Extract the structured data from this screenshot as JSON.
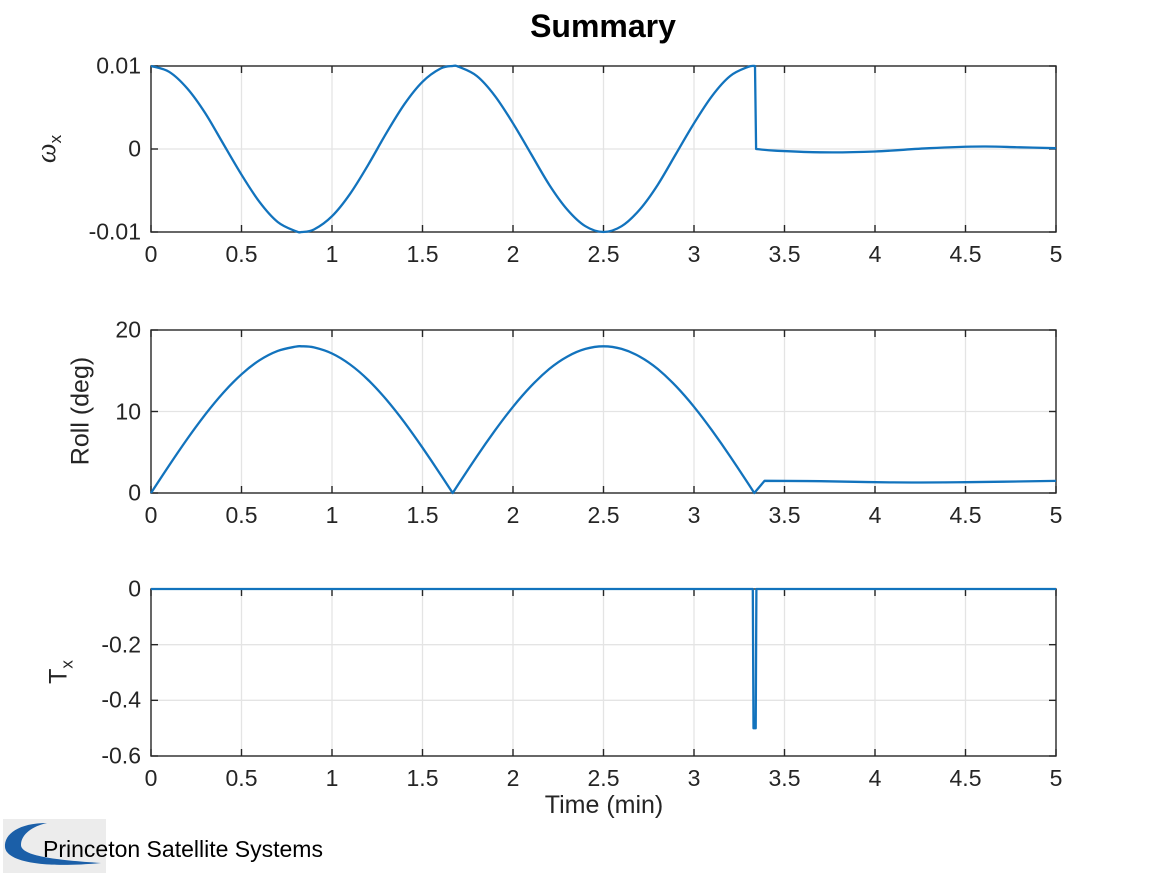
{
  "title": "Summary",
  "xlabel": "Time (min)",
  "branding": {
    "logo_text": "Princeton Satellite Systems"
  },
  "colors": {
    "line": "#1273bd",
    "axis": "#262626",
    "grid": "#e4e4e4",
    "logo_blue": "#1b5fa8",
    "logo_bg": "#ececec",
    "background": "#ffffff"
  },
  "chart_data": [
    {
      "type": "line",
      "name": "angular-rate",
      "ylabel": {
        "main": "ω",
        "sub": "x"
      },
      "xlim": [
        0,
        5
      ],
      "ylim": [
        -0.01,
        0.01
      ],
      "xtick_values": [
        0,
        0.5,
        1,
        1.5,
        2,
        2.5,
        3,
        3.5,
        4,
        4.5,
        5
      ],
      "xtick_labels": [
        "0",
        "0.5",
        "1",
        "1.5",
        "2",
        "2.5",
        "3",
        "3.5",
        "4",
        "4.5",
        "5"
      ],
      "ytick_values": [
        -0.01,
        0,
        0.01
      ],
      "ytick_labels": [
        "-0.01",
        "0",
        "0.01"
      ],
      "grid": true,
      "series": [
        {
          "name": "omega_x",
          "segments": [
            {
              "smooth": true,
              "pts": [
                [
                  0,
                  0.01
                ],
                [
                  0.1,
                  0.0093
                ],
                [
                  0.2,
                  0.0073
                ],
                [
                  0.3,
                  0.0043
                ],
                [
                  0.4,
                  0.0006
                ],
                [
                  0.5,
                  -0.0031
                ],
                [
                  0.6,
                  -0.0064
                ],
                [
                  0.7,
                  -0.0088
                ],
                [
                  0.8,
                  -0.0099
                ],
                [
                  0.833,
                  -0.01
                ],
                [
                  0.9,
                  -0.0097
                ],
                [
                  1.0,
                  -0.0081
                ],
                [
                  1.1,
                  -0.0054
                ],
                [
                  1.2,
                  -0.0019
                ],
                [
                  1.3,
                  0.0019
                ],
                [
                  1.4,
                  0.0054
                ],
                [
                  1.5,
                  0.0081
                ],
                [
                  1.6,
                  0.0097
                ],
                [
                  1.667,
                  0.01
                ],
                [
                  1.7,
                  0.0099
                ],
                [
                  1.8,
                  0.0088
                ],
                [
                  1.9,
                  0.0064
                ],
                [
                  2.0,
                  0.0031
                ],
                [
                  2.1,
                  -0.0006
                ],
                [
                  2.2,
                  -0.0043
                ],
                [
                  2.3,
                  -0.0073
                ],
                [
                  2.4,
                  -0.0093
                ],
                [
                  2.5,
                  -0.01
                ],
                [
                  2.6,
                  -0.0093
                ],
                [
                  2.7,
                  -0.0073
                ],
                [
                  2.8,
                  -0.0043
                ],
                [
                  2.9,
                  -0.0006
                ],
                [
                  3.0,
                  0.0031
                ],
                [
                  3.1,
                  0.0064
                ],
                [
                  3.2,
                  0.0088
                ],
                [
                  3.3,
                  0.0099
                ],
                [
                  3.337,
                  0.01
                ]
              ]
            },
            {
              "smooth": false,
              "pts": [
                [
                  3.337,
                  0.01
                ],
                [
                  3.343,
                  0
                ]
              ]
            },
            {
              "smooth": true,
              "pts": [
                [
                  3.343,
                  0
                ],
                [
                  3.45,
                  -0.0002
                ],
                [
                  3.7,
                  -0.0004
                ],
                [
                  4.0,
                  -0.0003
                ],
                [
                  4.3,
                  0.0001
                ],
                [
                  4.6,
                  0.0003
                ],
                [
                  4.8,
                  0.0002
                ],
                [
                  5,
                  0.0001
                ]
              ]
            }
          ]
        }
      ]
    },
    {
      "type": "line",
      "name": "roll-angle",
      "ylabel": {
        "main": "Roll (deg)",
        "sub": ""
      },
      "xlim": [
        0,
        5
      ],
      "ylim": [
        0,
        20
      ],
      "xtick_values": [
        0,
        0.5,
        1,
        1.5,
        2,
        2.5,
        3,
        3.5,
        4,
        4.5,
        5
      ],
      "xtick_labels": [
        "0",
        "0.5",
        "1",
        "1.5",
        "2",
        "2.5",
        "3",
        "3.5",
        "4",
        "4.5",
        "5"
      ],
      "ytick_values": [
        0,
        10,
        20
      ],
      "ytick_labels": [
        "0",
        "10",
        "20"
      ],
      "grid": true,
      "series": [
        {
          "name": "roll",
          "segments": [
            {
              "smooth": true,
              "pts": [
                [
                  0,
                  0
                ],
                [
                  0.1,
                  3.37
                ],
                [
                  0.2,
                  6.63
                ],
                [
                  0.3,
                  9.64
                ],
                [
                  0.4,
                  12.32
                ],
                [
                  0.5,
                  14.56
                ],
                [
                  0.6,
                  16.29
                ],
                [
                  0.7,
                  17.43
                ],
                [
                  0.8,
                  17.96
                ],
                [
                  0.833,
                  18
                ],
                [
                  0.9,
                  17.86
                ],
                [
                  1.0,
                  17.12
                ],
                [
                  1.1,
                  15.77
                ],
                [
                  1.2,
                  13.87
                ],
                [
                  1.3,
                  11.47
                ],
                [
                  1.4,
                  8.67
                ],
                [
                  1.5,
                  5.56
                ],
                [
                  1.6,
                  2.26
                ],
                [
                  1.667,
                  0
                ]
              ]
            },
            {
              "smooth": true,
              "pts": [
                [
                  1.667,
                  0
                ],
                [
                  1.7,
                  1.13
                ],
                [
                  1.8,
                  4.48
                ],
                [
                  1.9,
                  7.66
                ],
                [
                  2.0,
                  10.58
                ],
                [
                  2.1,
                  13.12
                ],
                [
                  2.2,
                  15.21
                ],
                [
                  2.3,
                  16.74
                ],
                [
                  2.4,
                  17.68
                ],
                [
                  2.5,
                  18
                ],
                [
                  2.6,
                  17.68
                ],
                [
                  2.7,
                  16.74
                ],
                [
                  2.8,
                  15.21
                ],
                [
                  2.9,
                  13.12
                ],
                [
                  3.0,
                  10.58
                ],
                [
                  3.1,
                  7.66
                ],
                [
                  3.2,
                  4.48
                ],
                [
                  3.3,
                  1.13
                ],
                [
                  3.333,
                  0
                ]
              ]
            },
            {
              "smooth": false,
              "pts": [
                [
                  3.333,
                  0
                ],
                [
                  3.39,
                  1.5
                ]
              ]
            },
            {
              "smooth": true,
              "pts": [
                [
                  3.39,
                  1.5
                ],
                [
                  3.7,
                  1.45
                ],
                [
                  4.1,
                  1.3
                ],
                [
                  4.5,
                  1.33
                ],
                [
                  5,
                  1.48
                ]
              ]
            }
          ]
        }
      ]
    },
    {
      "type": "line",
      "name": "control-torque",
      "ylabel": {
        "main": "T",
        "sub": "x"
      },
      "xlim": [
        0,
        5
      ],
      "ylim": [
        -0.6,
        0
      ],
      "xtick_values": [
        0,
        0.5,
        1,
        1.5,
        2,
        2.5,
        3,
        3.5,
        4,
        4.5,
        5
      ],
      "xtick_labels": [
        "0",
        "0.5",
        "1",
        "1.5",
        "2",
        "2.5",
        "3",
        "3.5",
        "4",
        "4.5",
        "5"
      ],
      "ytick_values": [
        -0.6,
        -0.4,
        -0.2,
        0
      ],
      "ytick_labels": [
        "-0.6",
        "-0.4",
        "-0.2",
        "0"
      ],
      "grid": true,
      "series": [
        {
          "name": "torque_x",
          "segments": [
            {
              "smooth": false,
              "pts": [
                [
                  0,
                  0
                ],
                [
                  3.325,
                  0
                ],
                [
                  3.329,
                  -0.5
                ],
                [
                  3.341,
                  -0.5
                ],
                [
                  3.345,
                  0
                ],
                [
                  5,
                  0
                ]
              ]
            }
          ]
        }
      ]
    }
  ]
}
